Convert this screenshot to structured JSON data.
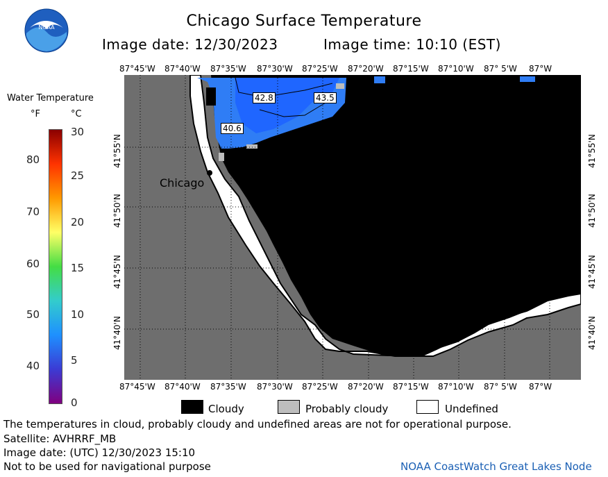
{
  "header": {
    "logo_text": "NOAA",
    "title": "Chicago Surface Temperature",
    "image_date": "Image date: 12/30/2023",
    "image_time": "Image time: 10:10 (EST)"
  },
  "colorbar": {
    "title": "Water Temperature",
    "unit_f": "°F",
    "unit_c": "°C",
    "f_ticks": [
      "80",
      "70",
      "60",
      "50",
      "40"
    ],
    "c_ticks": [
      "30",
      "25",
      "20",
      "15",
      "10",
      "5",
      "0"
    ],
    "colors": [
      "#800080",
      "#3b3bd4",
      "#1e90ff",
      "#33cccc",
      "#44dd44",
      "#ffff66",
      "#ff9900",
      "#ff3300",
      "#8b0000"
    ]
  },
  "map": {
    "lon_ticks": [
      "87°45'W",
      "87°40'W",
      "87°35'W",
      "87°30'W",
      "87°25'W",
      "87°20'W",
      "87°15'W",
      "87°10'W",
      "87° 5'W",
      "87°W"
    ],
    "lat_ticks": [
      "41°55'N",
      "41°50'N",
      "41°45'N",
      "41°40'N"
    ],
    "city_label": "Chicago",
    "temp_labels": [
      "42.8",
      "43.5",
      "40.6"
    ],
    "colors": {
      "land": "#6e6e6e",
      "cloud": "#000000",
      "undefined": "#ffffff",
      "water_cold": "#2f7df5",
      "water_mid": "#1f66ff",
      "probably_cloudy": "#bdbdbd"
    }
  },
  "legend": {
    "cloudy": "Cloudy",
    "probably_cloudy": "Probably cloudy",
    "undefined": "Undefined"
  },
  "notes": {
    "disclaimer": "The temperatures in cloud, probably cloudy and undefined areas are not for operational purpose.",
    "satellite": "Satellite: AVHRRF_MB",
    "utc_date": "Image date: (UTC) 12/30/2023  15:10",
    "nav_warning": "Not to be used for navigational purpose",
    "credit": "NOAA CoastWatch Great Lakes Node"
  }
}
